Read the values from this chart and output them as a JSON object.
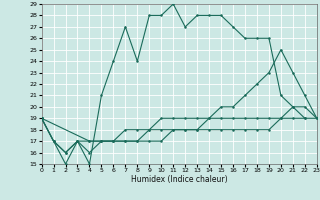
{
  "xlabel": "Humidex (Indice chaleur)",
  "background_color": "#cce8e4",
  "grid_color": "#ffffff",
  "line_color": "#1a6b5a",
  "ylim": [
    15,
    29
  ],
  "xlim": [
    0,
    23
  ],
  "yticks": [
    15,
    16,
    17,
    18,
    19,
    20,
    21,
    22,
    23,
    24,
    25,
    26,
    27,
    28,
    29
  ],
  "xticks": [
    0,
    1,
    2,
    3,
    4,
    5,
    6,
    7,
    8,
    9,
    10,
    11,
    12,
    13,
    14,
    15,
    16,
    17,
    18,
    19,
    20,
    21,
    22,
    23
  ],
  "lines": [
    {
      "x": [
        0,
        1,
        2,
        3,
        4,
        5,
        6,
        7,
        8,
        9,
        10,
        11,
        12,
        13,
        14,
        15,
        16,
        17,
        18,
        19,
        20,
        21,
        22
      ],
      "y": [
        19,
        17,
        15,
        17,
        15,
        21,
        24,
        27,
        24,
        28,
        28,
        29,
        27,
        28,
        28,
        28,
        27,
        26,
        26,
        26,
        21,
        20,
        19
      ]
    },
    {
      "x": [
        0,
        4,
        5,
        6,
        7,
        8,
        9,
        10,
        11,
        12,
        13,
        14,
        15,
        16,
        17,
        18,
        19,
        20,
        21,
        22,
        23
      ],
      "y": [
        19,
        17,
        17,
        17,
        18,
        18,
        18,
        19,
        19,
        19,
        19,
        19,
        20,
        20,
        21,
        22,
        23,
        25,
        23,
        21,
        19
      ]
    },
    {
      "x": [
        0,
        1,
        2,
        3,
        4,
        5,
        6,
        7,
        8,
        9,
        10,
        11,
        12,
        13,
        14,
        15,
        16,
        17,
        18,
        19,
        20,
        21,
        22,
        23
      ],
      "y": [
        19,
        17,
        16,
        17,
        17,
        17,
        17,
        17,
        17,
        18,
        18,
        18,
        18,
        18,
        18,
        18,
        18,
        18,
        18,
        18,
        19,
        19,
        19,
        19
      ]
    },
    {
      "x": [
        0,
        1,
        2,
        3,
        4,
        5,
        6,
        7,
        8,
        9,
        10,
        11,
        12,
        13,
        14,
        15,
        16,
        17,
        18,
        19,
        20,
        21,
        22,
        23
      ],
      "y": [
        19,
        17,
        16,
        17,
        16,
        17,
        17,
        17,
        17,
        17,
        17,
        18,
        18,
        18,
        19,
        19,
        19,
        19,
        19,
        19,
        19,
        20,
        20,
        19
      ]
    }
  ]
}
